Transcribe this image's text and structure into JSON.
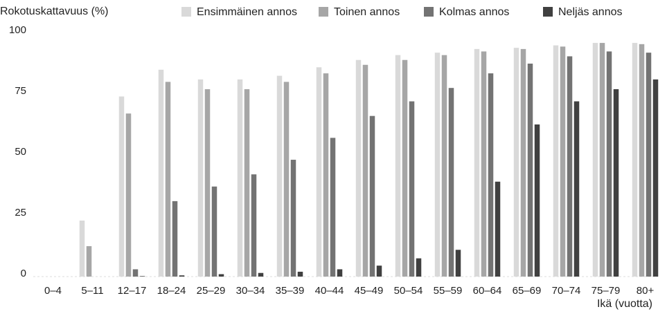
{
  "chart_data": {
    "type": "bar",
    "ylabel": "Rokotuskattavuus (%)",
    "xlabel": "Ikä (vuotta)",
    "categories": [
      "0–4",
      "5–11",
      "12–17",
      "18–24",
      "25–29",
      "30–34",
      "35–39",
      "40–44",
      "45–49",
      "50–54",
      "55–59",
      "60–64",
      "65–69",
      "70–74",
      "75–79",
      "80+"
    ],
    "series": [
      {
        "name": "Ensimmäinen annos",
        "color": "#d9d9d9",
        "values": [
          0,
          23,
          74,
          85,
          81,
          81,
          82.5,
          86,
          89,
          91,
          92,
          93.5,
          94,
          95,
          96,
          96
        ]
      },
      {
        "name": "Toinen annos",
        "color": "#a6a6a6",
        "values": [
          0,
          12.5,
          67,
          80,
          77,
          77,
          80,
          83.5,
          87,
          89,
          91,
          92.5,
          93.5,
          94.5,
          96,
          95.5
        ]
      },
      {
        "name": "Kolmas annos",
        "color": "#737373",
        "values": [
          0,
          0,
          3,
          31,
          37,
          42,
          48,
          57,
          66,
          72,
          77.5,
          83.5,
          87.5,
          90.5,
          92.5,
          92
        ]
      },
      {
        "name": "Neljäs annos",
        "color": "#404040",
        "values": [
          0,
          0,
          0.2,
          0.5,
          1,
          1.5,
          2,
          3,
          4.5,
          7.5,
          11,
          39,
          62.5,
          72,
          77,
          81
        ]
      }
    ],
    "ylim": [
      0,
      100
    ],
    "yticks": [
      0,
      25,
      50,
      75,
      100
    ],
    "grid": false
  }
}
